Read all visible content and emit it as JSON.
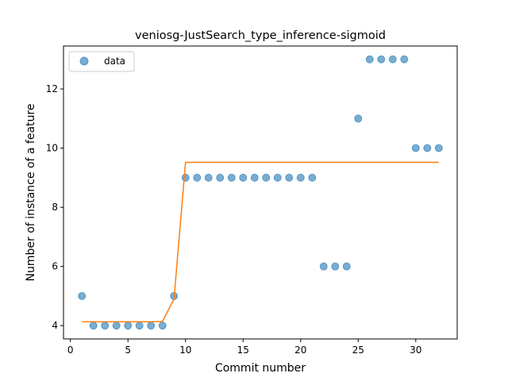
{
  "chart_data": {
    "type": "scatter",
    "title": "veniosg-JustSearch_type_inference-sigmoid",
    "xlabel": "Commit number",
    "ylabel": "Number of instance of a feature",
    "xlim": [
      -0.6,
      33.6
    ],
    "ylim": [
      3.55,
      13.45
    ],
    "xticks": [
      0,
      5,
      10,
      15,
      20,
      25,
      30
    ],
    "yticks": [
      4,
      6,
      8,
      10,
      12
    ],
    "grid": false,
    "legend": {
      "position": "top-left",
      "entries": [
        "data"
      ]
    },
    "series": [
      {
        "name": "data",
        "kind": "scatter",
        "color": "#1f77b4",
        "x": [
          1,
          2,
          3,
          4,
          5,
          6,
          7,
          8,
          9,
          10,
          11,
          12,
          13,
          14,
          15,
          16,
          17,
          18,
          19,
          20,
          21,
          22,
          23,
          24,
          25,
          26,
          27,
          28,
          29,
          30,
          31,
          32
        ],
        "y": [
          5,
          4,
          4,
          4,
          4,
          4,
          4,
          4,
          5,
          9,
          9,
          9,
          9,
          9,
          9,
          9,
          9,
          9,
          9,
          9,
          9,
          6,
          6,
          6,
          11,
          13,
          13,
          13,
          13,
          10,
          10,
          10
        ]
      },
      {
        "kind": "line",
        "color": "#ff7f0e",
        "x": [
          1,
          2,
          3,
          4,
          5,
          6,
          7,
          8,
          9,
          10,
          11,
          12,
          13,
          14,
          15,
          16,
          17,
          18,
          19,
          20,
          21,
          22,
          23,
          24,
          25,
          26,
          27,
          28,
          29,
          30,
          31,
          32
        ],
        "y": [
          4.13,
          4.13,
          4.13,
          4.13,
          4.13,
          4.13,
          4.13,
          4.14,
          4.9,
          9.52,
          9.52,
          9.52,
          9.52,
          9.52,
          9.52,
          9.52,
          9.52,
          9.52,
          9.52,
          9.52,
          9.52,
          9.52,
          9.52,
          9.52,
          9.52,
          9.52,
          9.52,
          9.52,
          9.52,
          9.52,
          9.52,
          9.52
        ]
      }
    ]
  }
}
